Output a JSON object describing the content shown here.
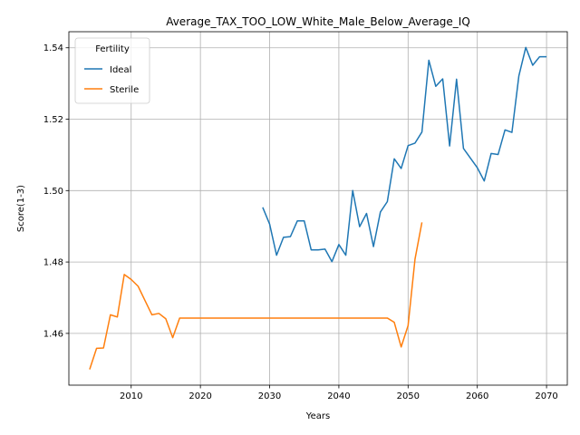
{
  "chart_data": {
    "type": "line",
    "title": "Average_TAX_TOO_LOW_White_Male_Below_Average_IQ",
    "xlabel": "Years",
    "ylabel": "Score(1-3)",
    "xlim": [
      2001,
      2073
    ],
    "ylim": [
      1.4455,
      1.5445
    ],
    "xticks": [
      2010,
      2020,
      2030,
      2040,
      2050,
      2060,
      2070
    ],
    "yticks": [
      1.46,
      1.48,
      1.5,
      1.52,
      1.54
    ],
    "grid": true,
    "legend": {
      "title": "Fertility",
      "placement": "top-left"
    },
    "series": [
      {
        "name": "Ideal",
        "color": "#1f77b4",
        "x": [
          2029,
          2030,
          2031,
          2032,
          2033,
          2034,
          2035,
          2036,
          2037,
          2038,
          2039,
          2040,
          2041,
          2042,
          2043,
          2044,
          2045,
          2046,
          2047,
          2048,
          2049,
          2050,
          2051,
          2052,
          2053,
          2054,
          2055,
          2056,
          2057,
          2058,
          2059,
          2060,
          2061,
          2062,
          2063,
          2064,
          2065,
          2066,
          2067,
          2068,
          2069,
          2070
        ],
        "values": [
          1.4953,
          1.4906,
          1.4819,
          1.4869,
          1.4871,
          1.4915,
          1.4915,
          1.4834,
          1.4834,
          1.4836,
          1.4801,
          1.4849,
          1.4819,
          1.5,
          1.4899,
          1.4936,
          1.4843,
          1.494,
          1.4969,
          1.5089,
          1.5062,
          1.5126,
          1.5133,
          1.5164,
          1.5365,
          1.5292,
          1.5313,
          1.5125,
          1.5312,
          1.5118,
          1.5091,
          1.5064,
          1.5027,
          1.5104,
          1.5101,
          1.517,
          1.5163,
          1.5321,
          1.5401,
          1.5351,
          1.5375,
          1.5375
        ]
      },
      {
        "name": "Sterile",
        "color": "#ff7f0e",
        "x": [
          2004,
          2005,
          2006,
          2007,
          2008,
          2009,
          2010,
          2011,
          2012,
          2013,
          2014,
          2015,
          2016,
          2017,
          2018,
          2019,
          2020,
          2021,
          2022,
          2023,
          2024,
          2025,
          2026,
          2027,
          2028,
          2029,
          2030,
          2031,
          2032,
          2033,
          2034,
          2035,
          2036,
          2037,
          2038,
          2039,
          2040,
          2041,
          2042,
          2043,
          2044,
          2045,
          2046,
          2047,
          2048,
          2049,
          2050,
          2051,
          2052
        ],
        "values": [
          1.4499,
          1.4558,
          1.4559,
          1.4652,
          1.4646,
          1.4765,
          1.4751,
          1.4732,
          1.4692,
          1.4652,
          1.4656,
          1.4641,
          1.4588,
          1.4643,
          1.4643,
          1.4643,
          1.4643,
          1.4643,
          1.4643,
          1.4643,
          1.4643,
          1.4643,
          1.4643,
          1.4643,
          1.4643,
          1.4643,
          1.4643,
          1.4643,
          1.4643,
          1.4643,
          1.4643,
          1.4643,
          1.4643,
          1.4643,
          1.4643,
          1.4643,
          1.4643,
          1.4643,
          1.4643,
          1.4643,
          1.4643,
          1.4643,
          1.4643,
          1.4643,
          1.4631,
          1.4562,
          1.4622,
          1.4808,
          1.4911
        ]
      }
    ]
  }
}
